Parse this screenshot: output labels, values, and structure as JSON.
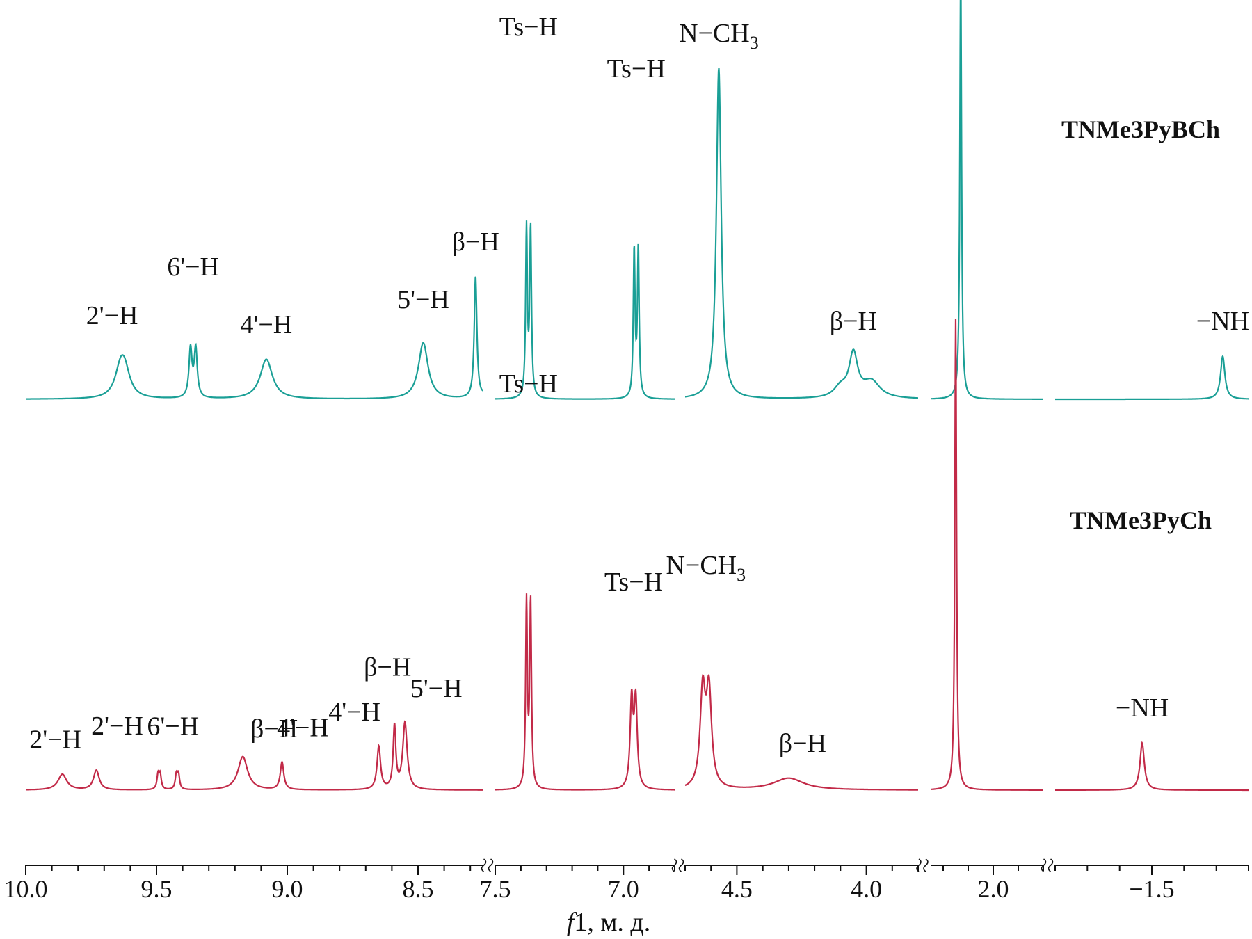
{
  "chart_data": {
    "type": "line",
    "title": "",
    "xlabel": "f1, м. д.",
    "ylabel": "",
    "x_axis": {
      "segments": [
        {
          "from": 10.0,
          "to": 8.25,
          "ticks": [
            "10.0",
            "9.5",
            "9.0",
            "8.5"
          ]
        },
        {
          "from": 7.5,
          "to": 6.8,
          "ticks": [
            "7.5",
            "7.0"
          ]
        },
        {
          "from": 4.7,
          "to": 3.8,
          "ticks": [
            "4.5",
            "4.0"
          ]
        },
        {
          "from": 2.25,
          "to": 1.8,
          "ticks": [
            "2.0"
          ]
        },
        {
          "from": -1.2,
          "to": -1.8,
          "ticks": [
            "−1.5"
          ]
        }
      ]
    },
    "series": [
      {
        "name": "TNMe3PyBCh",
        "color": "#1a9f96",
        "peaks": [
          {
            "ppm": 9.63,
            "height": 0.14,
            "width": 0.025,
            "label": "2'−H",
            "mult": [
              -0.008,
              0.008
            ],
            "sep": 0.016
          },
          {
            "ppm": 9.36,
            "height": 0.28,
            "width": 0.007,
            "label": "6'−H",
            "mult": [
              -0.01,
              0.01
            ]
          },
          {
            "ppm": 9.08,
            "height": 0.12,
            "width": 0.028,
            "label": "4'−H"
          },
          {
            "ppm": 8.48,
            "height": 0.17,
            "width": 0.022,
            "label": "5'−H"
          },
          {
            "ppm": 8.28,
            "height": 0.37,
            "width": 0.006,
            "label": "β−H"
          },
          {
            "ppm": 8.24,
            "height": 0.02,
            "width": 0.01
          },
          {
            "ppm": 7.37,
            "height": 0.97,
            "width": 0.004,
            "label": "Ts−H",
            "mult": [
              -0.008,
              0.008
            ]
          },
          {
            "ppm": 6.95,
            "height": 0.85,
            "width": 0.004,
            "label": "Ts−H",
            "mult": [
              -0.008,
              0.008
            ]
          },
          {
            "ppm": 4.57,
            "height": 1.0,
            "width": 0.011,
            "label": "N−CH3"
          },
          {
            "ppm": 4.05,
            "height": 0.13,
            "width": 0.02,
            "label": "β−H"
          },
          {
            "ppm": 3.98,
            "height": 0.05,
            "width": 0.04
          },
          {
            "ppm": 4.1,
            "height": 0.03,
            "width": 0.03
          },
          {
            "ppm": 2.13,
            "height": 1.3,
            "width": 0.004
          },
          {
            "ppm": -1.72,
            "height": 0.13,
            "width": 0.008,
            "label": "−NH"
          }
        ]
      },
      {
        "name": "TNMe3PyCh",
        "color": "#c22a48",
        "peaks": [
          {
            "ppm": 9.86,
            "height": 0.04,
            "width": 0.02,
            "label": "2'−H"
          },
          {
            "ppm": 9.73,
            "height": 0.05,
            "width": 0.013,
            "label": "2'−H"
          },
          {
            "ppm": 9.49,
            "height": 0.07,
            "width": 0.005,
            "label": "6'−H",
            "mult": [
              -0.004,
              0.004
            ]
          },
          {
            "ppm": 9.42,
            "height": 0.07,
            "width": 0.005,
            "mult": [
              -0.004,
              0.004
            ]
          },
          {
            "ppm": 9.17,
            "height": 0.085,
            "width": 0.022,
            "label": "β−H"
          },
          {
            "ppm": 9.02,
            "height": 0.07,
            "width": 0.008,
            "label": "4'−H"
          },
          {
            "ppm": 8.65,
            "height": 0.11,
            "width": 0.008,
            "label": "4'−H"
          },
          {
            "ppm": 8.59,
            "height": 0.16,
            "width": 0.006,
            "label": "β−H"
          },
          {
            "ppm": 8.55,
            "height": 0.17,
            "width": 0.01,
            "label": "5'−H"
          },
          {
            "ppm": 7.37,
            "height": 0.9,
            "width": 0.004,
            "label": "Ts−H",
            "mult": [
              -0.008,
              0.008
            ]
          },
          {
            "ppm": 6.96,
            "height": 0.42,
            "width": 0.007,
            "label": "Ts−H",
            "mult": [
              -0.008,
              0.008
            ]
          },
          {
            "ppm": 4.62,
            "height": 0.46,
            "width": 0.012,
            "label": "N−CH3",
            "mult": [
              -0.012,
              0.012
            ]
          },
          {
            "ppm": 4.3,
            "height": 0.03,
            "width": 0.07,
            "label": "β−H"
          },
          {
            "ppm": 2.15,
            "height": 1.2,
            "width": 0.004
          },
          {
            "ppm": -1.47,
            "height": 0.12,
            "width": 0.008,
            "label": "−NH"
          }
        ]
      }
    ]
  }
}
